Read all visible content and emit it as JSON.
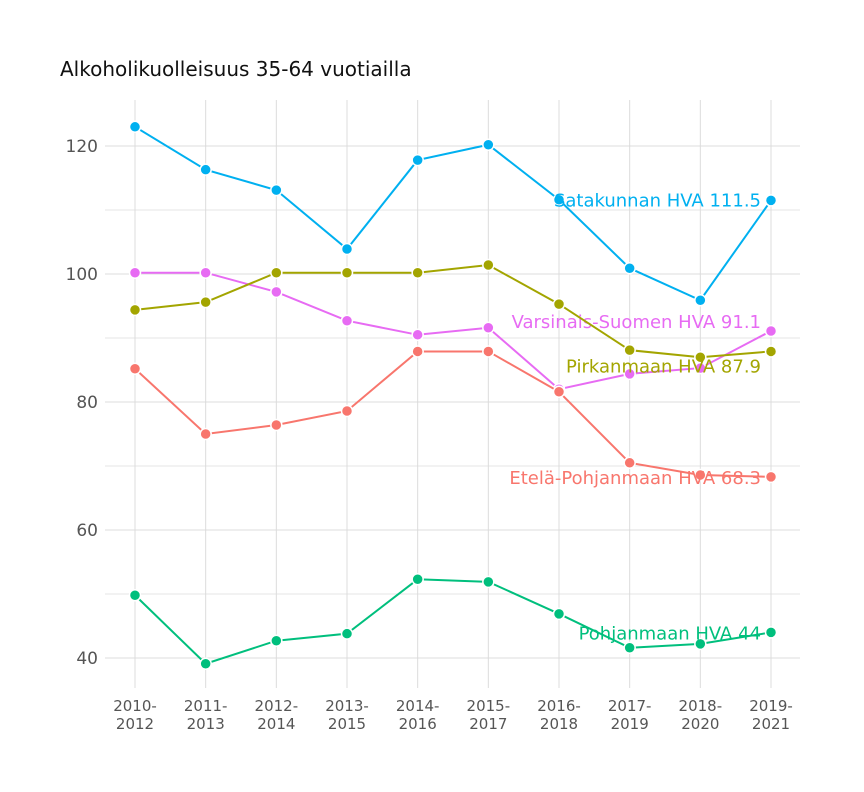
{
  "chart_data": {
    "type": "line",
    "title": "Alkoholikuolleisuus 35-64 vuotiailla",
    "xlabel": "",
    "ylabel": "",
    "categories": [
      [
        "2010-",
        "2012"
      ],
      [
        "2011-",
        "2013"
      ],
      [
        "2012-",
        "2014"
      ],
      [
        "2013-",
        "2015"
      ],
      [
        "2014-",
        "2016"
      ],
      [
        "2015-",
        "2017"
      ],
      [
        "2016-",
        "2018"
      ],
      [
        "2017-",
        "2019"
      ],
      [
        "2018-",
        "2020"
      ],
      [
        "2019-",
        "2021"
      ]
    ],
    "ylim": [
      35,
      128
    ],
    "yticks": [
      40,
      60,
      80,
      100,
      120
    ],
    "grid": true,
    "series": [
      {
        "name": "Satakunnan HVA",
        "label": "Satakunnan HVA 111.5",
        "color": "#00B0F0",
        "values": [
          123.0,
          116.3,
          113.1,
          103.9,
          117.8,
          120.2,
          111.6,
          100.9,
          95.9,
          111.5
        ]
      },
      {
        "name": "Varsinais-Suomen HVA",
        "label": "Varsinais-Suomen HVA 91.1",
        "color": "#E76BF3",
        "values": [
          100.2,
          100.2,
          97.2,
          92.7,
          90.5,
          91.6,
          82.0,
          84.4,
          85.3,
          91.1
        ]
      },
      {
        "name": "Pirkanmaan HVA",
        "label": "Pirkanmaan HVA 87.9",
        "color": "#A3A500",
        "values": [
          94.4,
          95.6,
          100.2,
          100.2,
          100.2,
          101.4,
          95.3,
          88.1,
          87.0,
          87.9
        ]
      },
      {
        "name": "Etelä-Pohjanmaan HVA",
        "label": "Etelä-Pohjanmaan HVA 68.3",
        "color": "#F8766D",
        "values": [
          85.2,
          75.0,
          76.4,
          78.6,
          87.9,
          87.9,
          81.6,
          70.5,
          68.6,
          68.3
        ]
      },
      {
        "name": "Pohjanmaan HVA",
        "label": "Pohjanmaan HVA 44",
        "color": "#00BF7D",
        "values": [
          49.8,
          39.1,
          42.7,
          43.8,
          52.3,
          51.9,
          46.9,
          41.6,
          42.2,
          44.0
        ]
      }
    ]
  }
}
